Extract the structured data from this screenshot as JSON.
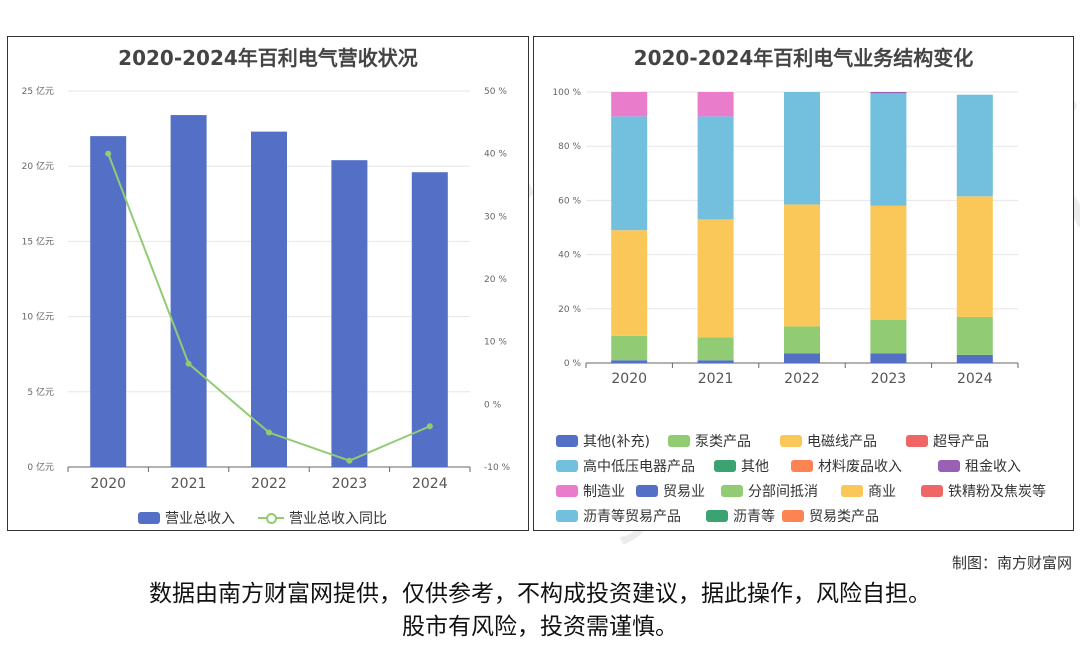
{
  "charts": {
    "revenue": {
      "title": "2020-2024年百利电气营收状况",
      "legend": {
        "bar_label": "营业总收入",
        "line_label": "营业总收入同比"
      },
      "colors": {
        "bar": "#5470c6",
        "line": "#91cc75"
      }
    },
    "structure": {
      "title": "2020-2024年百利电气业务结构变化"
    }
  },
  "chart_data": [
    {
      "type": "bar",
      "title": "2020-2024年百利电气营收状况",
      "categories": [
        "2020",
        "2021",
        "2022",
        "2023",
        "2024"
      ],
      "series": [
        {
          "name": "营业总收入",
          "type": "bar",
          "axis": "left",
          "values": [
            22.0,
            23.4,
            22.3,
            20.4,
            19.6
          ]
        },
        {
          "name": "营业总收入同比",
          "type": "line",
          "axis": "right",
          "values": [
            40.0,
            6.5,
            -4.5,
            -9.0,
            -3.5
          ]
        }
      ],
      "y_left": {
        "ticks": [
          "0 亿元",
          "5 亿元",
          "10 亿元",
          "15 亿元",
          "20 亿元",
          "25 亿元"
        ],
        "range": [
          0,
          25
        ]
      },
      "y_right": {
        "ticks": [
          "-10 %",
          "0 %",
          "10 %",
          "20 %",
          "30 %",
          "40 %",
          "50 %"
        ],
        "range": [
          -10,
          50
        ]
      }
    },
    {
      "type": "bar",
      "stacked": true,
      "title": "2020-2024年百利电气业务结构变化",
      "categories": [
        "2020",
        "2021",
        "2022",
        "2023",
        "2024"
      ],
      "y_ticks": [
        "0 %",
        "20 %",
        "40 %",
        "60 %",
        "80 %",
        "100 %"
      ],
      "ylim": [
        0,
        100
      ],
      "series": [
        {
          "name": "其他(补充)",
          "color": "#5470c6",
          "values": [
            1,
            1,
            3.5,
            3.5,
            3
          ]
        },
        {
          "name": "泵类产品",
          "color": "#91cc75",
          "values": [
            9,
            8.5,
            10,
            12.5,
            14
          ]
        },
        {
          "name": "电磁线产品",
          "color": "#fac858",
          "values": [
            39,
            43.5,
            45,
            42,
            44.5
          ]
        },
        {
          "name": "超导产品",
          "color": "#ee6666",
          "values": [
            0,
            0,
            0,
            0,
            0
          ]
        },
        {
          "name": "高中低压电器产品",
          "color": "#73c0de",
          "values": [
            42,
            38,
            41.5,
            41.5,
            37.5
          ]
        },
        {
          "name": "其他",
          "color": "#3ba272",
          "values": [
            0,
            0,
            0,
            0,
            0
          ]
        },
        {
          "name": "材料废品收入",
          "color": "#fc8452",
          "values": [
            0,
            0,
            0,
            0,
            0
          ]
        },
        {
          "name": "租金收入",
          "color": "#9a60b4",
          "values": [
            0,
            0,
            0,
            0.5,
            0
          ]
        },
        {
          "name": "制造业",
          "color": "#ea7ccc",
          "values": [
            9,
            9,
            0,
            0,
            0
          ]
        },
        {
          "name": "贸易业",
          "color": "#5470c6",
          "values": [
            0,
            0,
            0,
            0,
            0
          ]
        },
        {
          "name": "分部间抵消",
          "color": "#91cc75",
          "values": [
            0,
            0,
            0,
            0,
            0
          ]
        },
        {
          "name": "商业",
          "color": "#fac858",
          "values": [
            0,
            0,
            0,
            0,
            0
          ]
        },
        {
          "name": "铁精粉及焦炭等",
          "color": "#ee6666",
          "values": [
            0,
            0,
            0,
            0,
            0
          ]
        },
        {
          "name": "沥青等贸易产品",
          "color": "#73c0de",
          "values": [
            0,
            0,
            0,
            0,
            0
          ]
        },
        {
          "name": "沥青等",
          "color": "#3ba272",
          "values": [
            0,
            0,
            0,
            0,
            0
          ]
        },
        {
          "name": "贸易类产品",
          "color": "#fc8452",
          "values": [
            0,
            0,
            0,
            0,
            0
          ]
        }
      ]
    }
  ],
  "footer": {
    "credit": "制图：南方财富网",
    "disclaimer_line1": "数据由南方财富网提供，仅供参考，不构成投资建议，据此操作，风险自担。",
    "disclaimer_line2": "股市有风险，投资需谨慎。"
  },
  "watermark": {
    "cn": "南方财富网",
    "en": "southmoney.com"
  }
}
